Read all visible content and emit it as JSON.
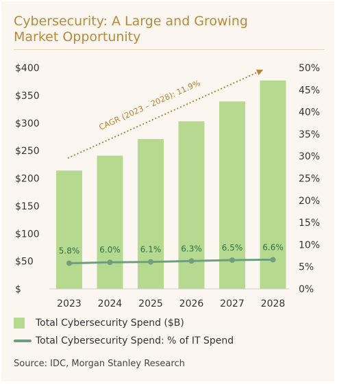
{
  "title_line1": "Cybersecurity: A Large and Growing",
  "title_line2": "Market Opportunity",
  "source": "Source: IDC, Morgan Stanley Research",
  "colors": {
    "bar": "#b5d98f",
    "line": "#6d9e80",
    "title": "#b58a3c",
    "cagr": "#b8823a"
  },
  "chart_data": {
    "type": "bar",
    "categories": [
      "2023",
      "2024",
      "2025",
      "2026",
      "2027",
      "2028"
    ],
    "series": [
      {
        "name": "Total Cybersecurity Spend ($B)",
        "type": "bar",
        "axis": "left",
        "values": [
          214,
          241,
          271,
          303,
          339,
          377
        ]
      },
      {
        "name": "Total Cybersecurity Spend: % of IT Spend",
        "type": "line",
        "axis": "right",
        "values": [
          5.8,
          6.0,
          6.1,
          6.3,
          6.5,
          6.6
        ],
        "labels": [
          "5.8%",
          "6.0%",
          "6.1%",
          "6.3%",
          "6.5%",
          "6.6%"
        ]
      }
    ],
    "ylim_left": [
      0,
      400
    ],
    "yticks_left": [
      "$",
      "$50",
      "$100",
      "$150",
      "$200",
      "$250",
      "$300",
      "$350",
      "$400"
    ],
    "ylim_right": [
      0,
      50
    ],
    "yticks_right": [
      "0%",
      "5%",
      "10%",
      "15%",
      "20%",
      "25%",
      "30%",
      "35%",
      "40%",
      "45%",
      "50%"
    ],
    "annotation": "CAGR (2023 – 2028): 11.9%",
    "grid": false,
    "legend_placement": "bottom-left"
  }
}
